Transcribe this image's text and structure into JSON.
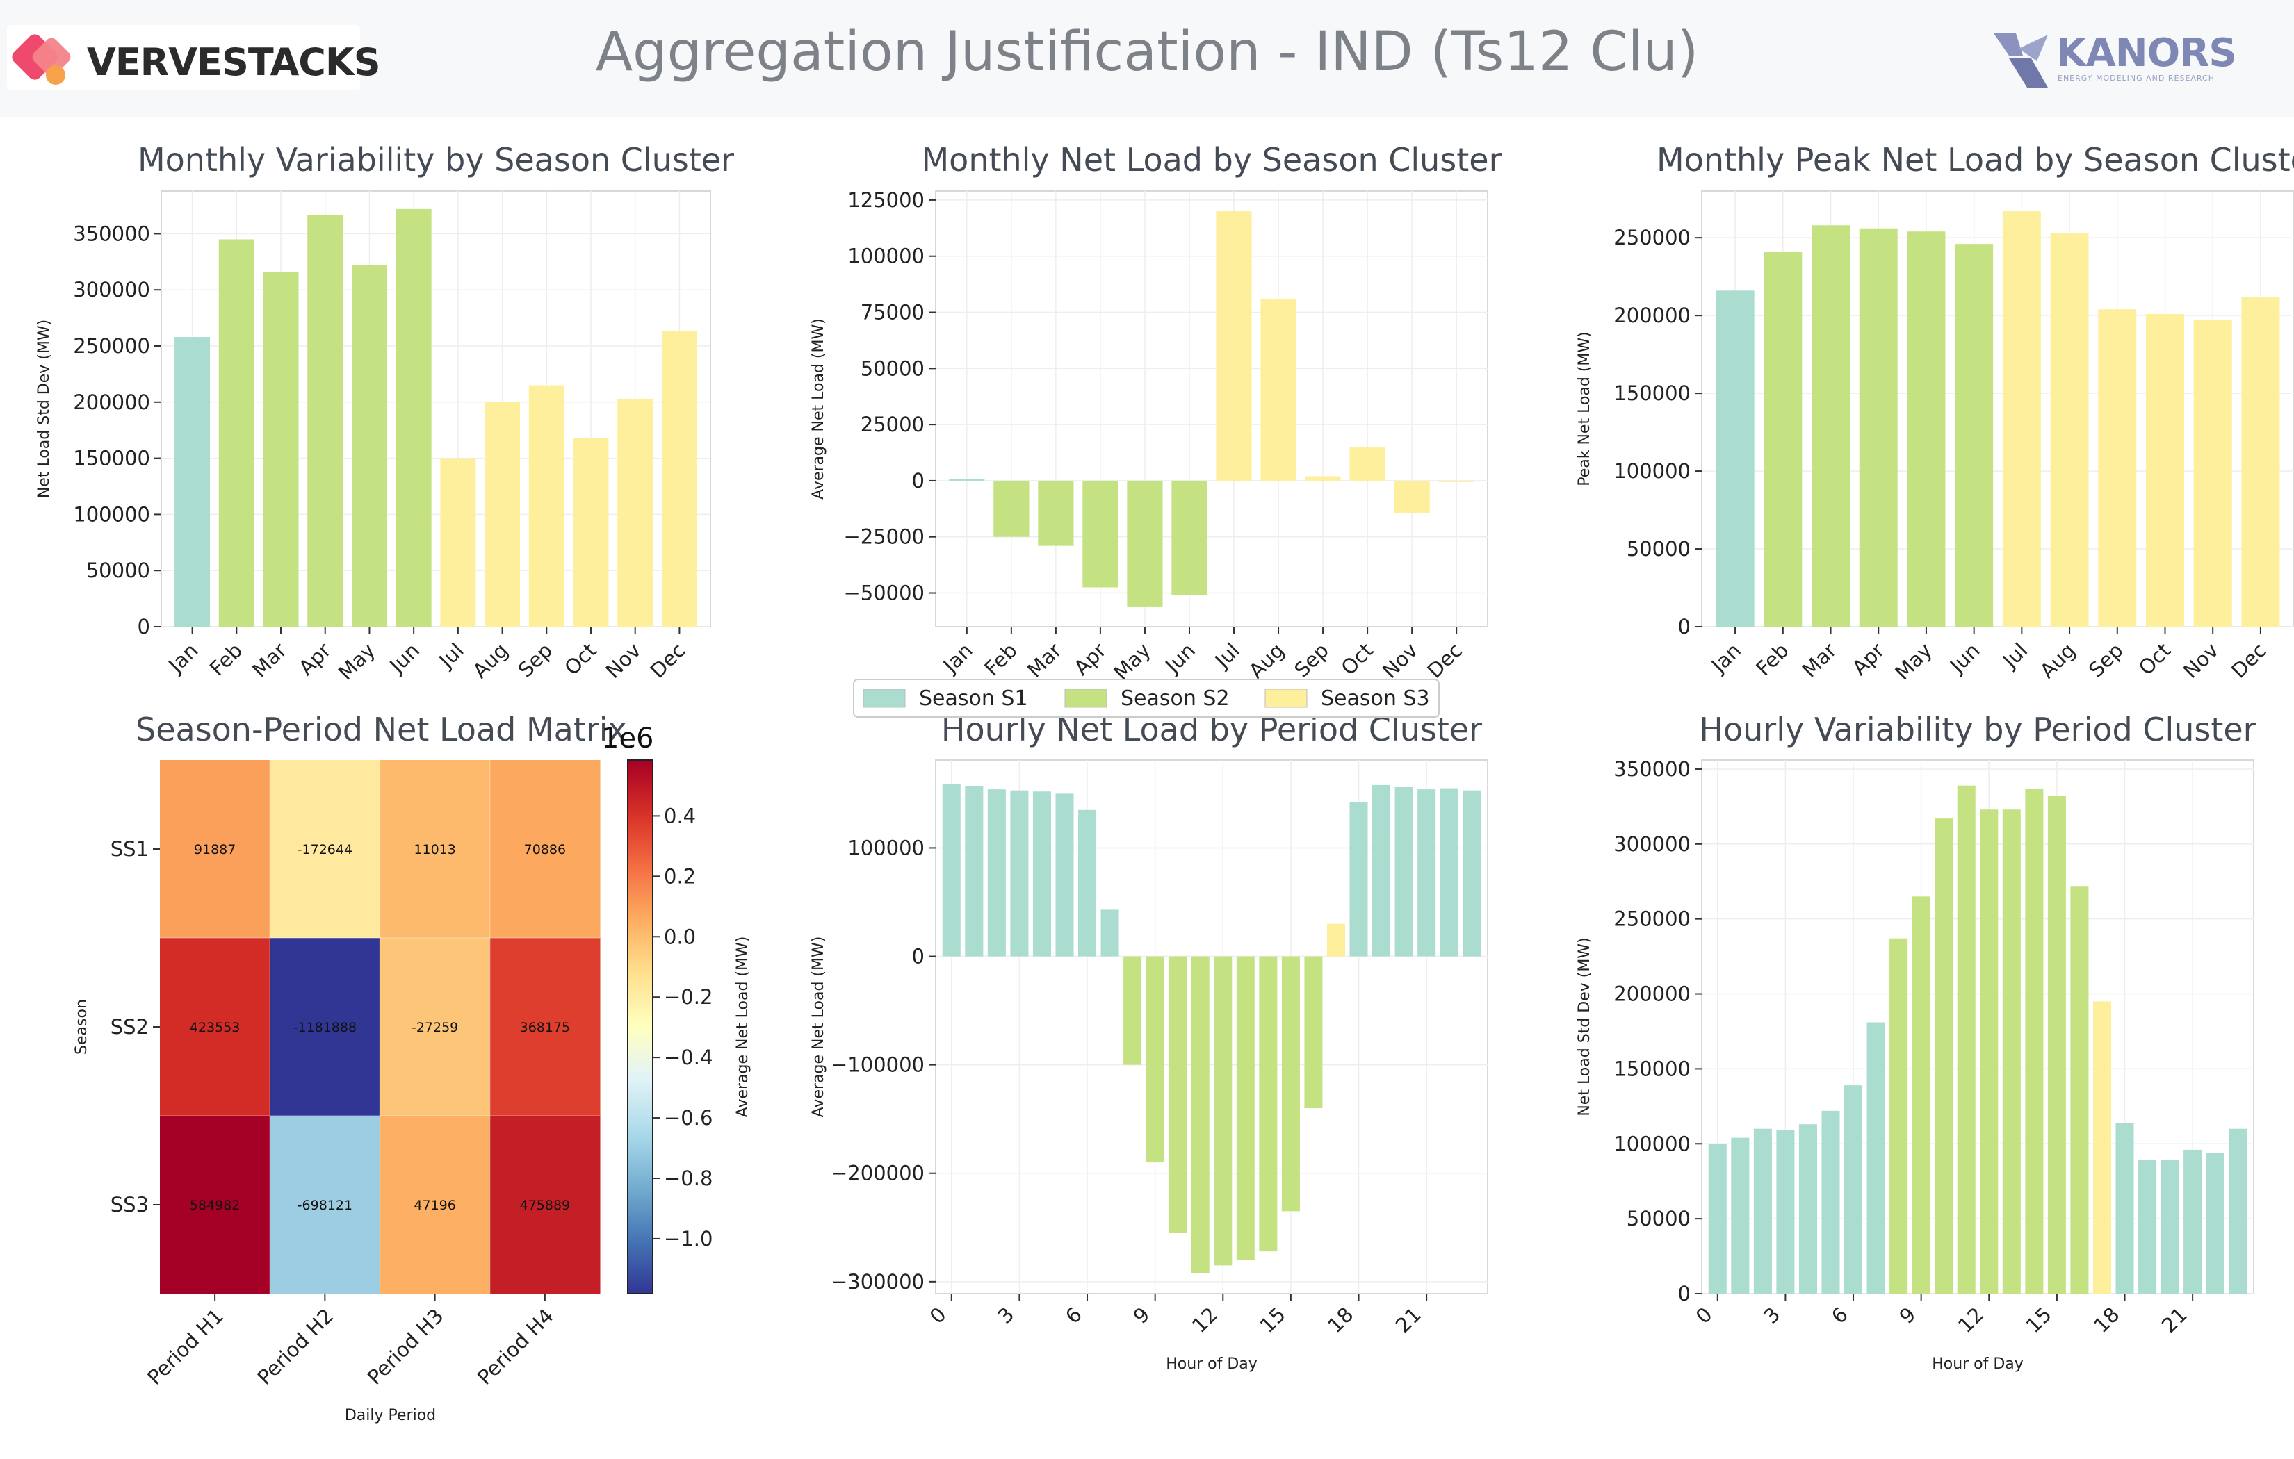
{
  "header": {
    "title": "Aggregation Justification - IND (Ts12 Clu)",
    "brand_left": "VERVESTACKS",
    "brand_right": "KANORS",
    "brand_right_tagline": "ENERGY MODELING AND RESEARCH"
  },
  "colors": {
    "S1": "#aadccf",
    "S2": "#c5e283",
    "S3": "#fdef9b",
    "title": "#444b55",
    "accent_left": "#ef4a6d",
    "accent_right": "#7f87b4"
  },
  "legend": {
    "items": [
      {
        "label": "Season S1",
        "color": "#aadccf"
      },
      {
        "label": "Season S2",
        "color": "#c5e283"
      },
      {
        "label": "Season S3",
        "color": "#fdef9b"
      }
    ]
  },
  "chart_data": [
    {
      "id": "monthly-variability",
      "type": "bar",
      "title": "Monthly Variability by Season Cluster",
      "xlabel": "",
      "ylabel": "Net Load Std Dev (MW)",
      "categories": [
        "Jan",
        "Feb",
        "Mar",
        "Apr",
        "May",
        "Jun",
        "Jul",
        "Aug",
        "Sep",
        "Oct",
        "Nov",
        "Dec"
      ],
      "values": [
        258000,
        345000,
        316000,
        367000,
        322000,
        372000,
        150000,
        200000,
        215000,
        168000,
        203000,
        263000
      ],
      "clusters": [
        "S1",
        "S2",
        "S2",
        "S2",
        "S2",
        "S2",
        "S3",
        "S3",
        "S3",
        "S3",
        "S3",
        "S3"
      ],
      "ylim": [
        0,
        388000
      ],
      "yticks": [
        0,
        50000,
        100000,
        150000,
        200000,
        250000,
        300000,
        350000
      ],
      "xtick_rotation": 45,
      "grid": true
    },
    {
      "id": "monthly-net-load",
      "type": "bar",
      "title": "Monthly Net Load by Season Cluster",
      "xlabel": "",
      "ylabel": "Average Net Load (MW)",
      "categories": [
        "Jan",
        "Feb",
        "Mar",
        "Apr",
        "May",
        "Jun",
        "Jul",
        "Aug",
        "Sep",
        "Oct",
        "Nov",
        "Dec"
      ],
      "values": [
        700,
        -25000,
        -29000,
        -47500,
        -56000,
        -51000,
        120000,
        81000,
        2000,
        15000,
        -14500,
        -600
      ],
      "clusters": [
        "S1",
        "S2",
        "S2",
        "S2",
        "S2",
        "S2",
        "S3",
        "S3",
        "S3",
        "S3",
        "S3",
        "S3"
      ],
      "ylim": [
        -65000,
        129000
      ],
      "yticks": [
        -50000,
        -25000,
        0,
        25000,
        50000,
        75000,
        100000,
        125000
      ],
      "xtick_rotation": 45,
      "grid": true
    },
    {
      "id": "monthly-peak-net-load",
      "type": "bar",
      "title": "Monthly Peak Net Load by Season Cluster",
      "xlabel": "",
      "ylabel": "Peak Net Load (MW)",
      "categories": [
        "Jan",
        "Feb",
        "Mar",
        "Apr",
        "May",
        "Jun",
        "Jul",
        "Aug",
        "Sep",
        "Oct",
        "Nov",
        "Dec"
      ],
      "values": [
        216000,
        241000,
        258000,
        256000,
        254000,
        246000,
        267000,
        253000,
        204000,
        201000,
        197000,
        212000
      ],
      "clusters": [
        "S1",
        "S2",
        "S2",
        "S2",
        "S2",
        "S2",
        "S3",
        "S3",
        "S3",
        "S3",
        "S3",
        "S3"
      ],
      "ylim": [
        0,
        280000
      ],
      "yticks": [
        0,
        50000,
        100000,
        150000,
        200000,
        250000
      ],
      "xtick_rotation": 45,
      "grid": true
    },
    {
      "id": "season-period-matrix",
      "type": "heatmap",
      "title": "Season-Period Net Load Matrix",
      "xlabel": "Daily Period",
      "ylabel": "Season",
      "columns": [
        "Period H1",
        "Period H2",
        "Period H3",
        "Period H4"
      ],
      "rows": [
        "SS1",
        "SS2",
        "SS3"
      ],
      "values": [
        [
          91887,
          -172644,
          11013,
          70886
        ],
        [
          423553,
          -1181888,
          -27259,
          368175
        ],
        [
          584982,
          -698121,
          47196,
          475889
        ]
      ],
      "cell_labels": [
        [
          "91887",
          "-172644",
          "11013",
          "70886"
        ],
        [
          "423553",
          "-1181888",
          "-27259",
          "368175"
        ],
        [
          "584982",
          "-698121",
          "47196",
          "475889"
        ]
      ],
      "colorbar": {
        "label": "Average Net Load (MW)",
        "offset_label": "1e6",
        "range": [
          -1181888,
          584982
        ],
        "ticks": [
          -1.0,
          -0.8,
          -0.6,
          -0.4,
          -0.2,
          0.0,
          0.2,
          0.4
        ],
        "tick_labels": [
          "−1.0",
          "−0.8",
          "−0.6",
          "−0.4",
          "−0.2",
          "0.0",
          "0.2",
          "0.4"
        ]
      }
    },
    {
      "id": "hourly-net-load",
      "type": "bar",
      "title": "Hourly Net Load by Period Cluster",
      "xlabel": "Hour of Day",
      "ylabel": "Average Net Load (MW)",
      "x": [
        0,
        1,
        2,
        3,
        4,
        5,
        6,
        7,
        8,
        9,
        10,
        11,
        12,
        13,
        14,
        15,
        16,
        17,
        18,
        19,
        20,
        21,
        22,
        23
      ],
      "values": [
        159000,
        157000,
        154000,
        153000,
        152000,
        150000,
        135000,
        43000,
        -100000,
        -190000,
        -255000,
        -292000,
        -285000,
        -280000,
        -272000,
        -235000,
        -140000,
        30000,
        142000,
        158000,
        156000,
        154000,
        155000,
        153000
      ],
      "clusters": [
        "S1",
        "S1",
        "S1",
        "S1",
        "S1",
        "S1",
        "S1",
        "S1",
        "S2",
        "S2",
        "S2",
        "S2",
        "S2",
        "S2",
        "S2",
        "S2",
        "S2",
        "S3",
        "S1",
        "S1",
        "S1",
        "S1",
        "S1",
        "S1"
      ],
      "ylim": [
        -311000,
        181000
      ],
      "yticks": [
        -300000,
        -200000,
        -100000,
        0,
        100000
      ],
      "xticks": [
        0,
        3,
        6,
        9,
        12,
        15,
        18,
        21
      ],
      "grid": true
    },
    {
      "id": "hourly-variability",
      "type": "bar",
      "title": "Hourly Variability by Period Cluster",
      "xlabel": "Hour of Day",
      "ylabel": "Net Load Std Dev (MW)",
      "x": [
        0,
        1,
        2,
        3,
        4,
        5,
        6,
        7,
        8,
        9,
        10,
        11,
        12,
        13,
        14,
        15,
        16,
        17,
        18,
        19,
        20,
        21,
        22,
        23
      ],
      "values": [
        100000,
        104000,
        110000,
        109000,
        113000,
        122000,
        139000,
        181000,
        237000,
        265000,
        317000,
        339000,
        323000,
        323000,
        337000,
        332000,
        272000,
        195000,
        114000,
        89000,
        89000,
        96000,
        94000,
        110000
      ],
      "clusters": [
        "S1",
        "S1",
        "S1",
        "S1",
        "S1",
        "S1",
        "S1",
        "S1",
        "S2",
        "S2",
        "S2",
        "S2",
        "S2",
        "S2",
        "S2",
        "S2",
        "S2",
        "S3",
        "S1",
        "S1",
        "S1",
        "S1",
        "S1",
        "S1"
      ],
      "ylim": [
        0,
        356000
      ],
      "yticks": [
        0,
        50000,
        100000,
        150000,
        200000,
        250000,
        300000,
        350000
      ],
      "xticks": [
        0,
        3,
        6,
        9,
        12,
        15,
        18,
        21
      ],
      "grid": true
    }
  ]
}
